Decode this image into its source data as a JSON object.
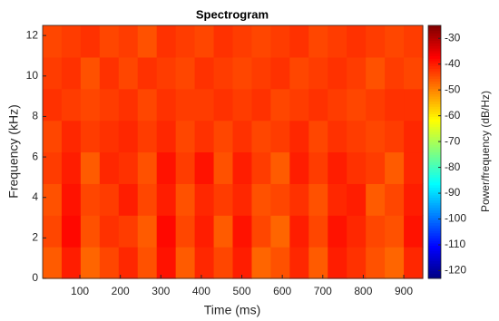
{
  "chart_data": {
    "type": "heatmap",
    "title": "Spectrogram",
    "x_label": "Time (ms)",
    "y_label": "Frequency (kHz)",
    "colorbar_label": "Power/frequency (dB/Hz)",
    "colormap": "jet",
    "xlim": [
      8,
      947
    ],
    "xticks": [
      100,
      200,
      300,
      400,
      500,
      600,
      700,
      800,
      900
    ],
    "ylim": [
      0,
      12.5
    ],
    "yticks": [
      0,
      2,
      4,
      6,
      8,
      10,
      12
    ],
    "clim": [
      -123,
      -25
    ],
    "cticks": [
      -120,
      -110,
      -100,
      -90,
      -80,
      -70,
      -60,
      -50,
      -40,
      -30
    ],
    "z": [
      [
        -46,
        -40,
        -47,
        -44,
        -41,
        -45,
        -39,
        -46,
        -41,
        -44,
        -40,
        -47,
        -45,
        -41,
        -46,
        -40,
        -42,
        -45,
        -47,
        -41
      ],
      [
        -44,
        -38,
        -45,
        -42,
        -43,
        -46,
        -38,
        -44,
        -40,
        -46,
        -39,
        -44,
        -47,
        -40,
        -44,
        -39,
        -41,
        -44,
        -45,
        -39
      ],
      [
        -45,
        -39,
        -44,
        -43,
        -40,
        -44,
        -40,
        -45,
        -41,
        -43,
        -41,
        -45,
        -44,
        -42,
        -45,
        -41,
        -40,
        -46,
        -44,
        -40
      ],
      [
        -43,
        -40,
        -46,
        -41,
        -42,
        -45,
        -39,
        -43,
        -39,
        -45,
        -40,
        -43,
        -46,
        -40,
        -43,
        -40,
        -42,
        -43,
        -46,
        -41
      ],
      [
        -44,
        -41,
        -43,
        -42,
        -41,
        -43,
        -41,
        -44,
        -42,
        -44,
        -42,
        -44,
        -43,
        -41,
        -44,
        -42,
        -43,
        -44,
        -43,
        -41
      ],
      [
        -42,
        -43,
        -44,
        -43,
        -42,
        -44,
        -42,
        -43,
        -43,
        -42,
        -43,
        -42,
        -44,
        -43,
        -42,
        -43,
        -44,
        -43,
        -42,
        -42
      ],
      [
        -43,
        -42,
        -45,
        -42,
        -44,
        -42,
        -43,
        -44,
        -42,
        -43,
        -44,
        -43,
        -42,
        -44,
        -43,
        -42,
        -43,
        -45,
        -43,
        -44
      ],
      [
        -44,
        -43,
        -42,
        -44,
        -43,
        -45,
        -42,
        -43,
        -44,
        -42,
        -43,
        -44,
        -43,
        -42,
        -44,
        -43,
        -42,
        -43,
        -44,
        -43
      ]
    ]
  }
}
